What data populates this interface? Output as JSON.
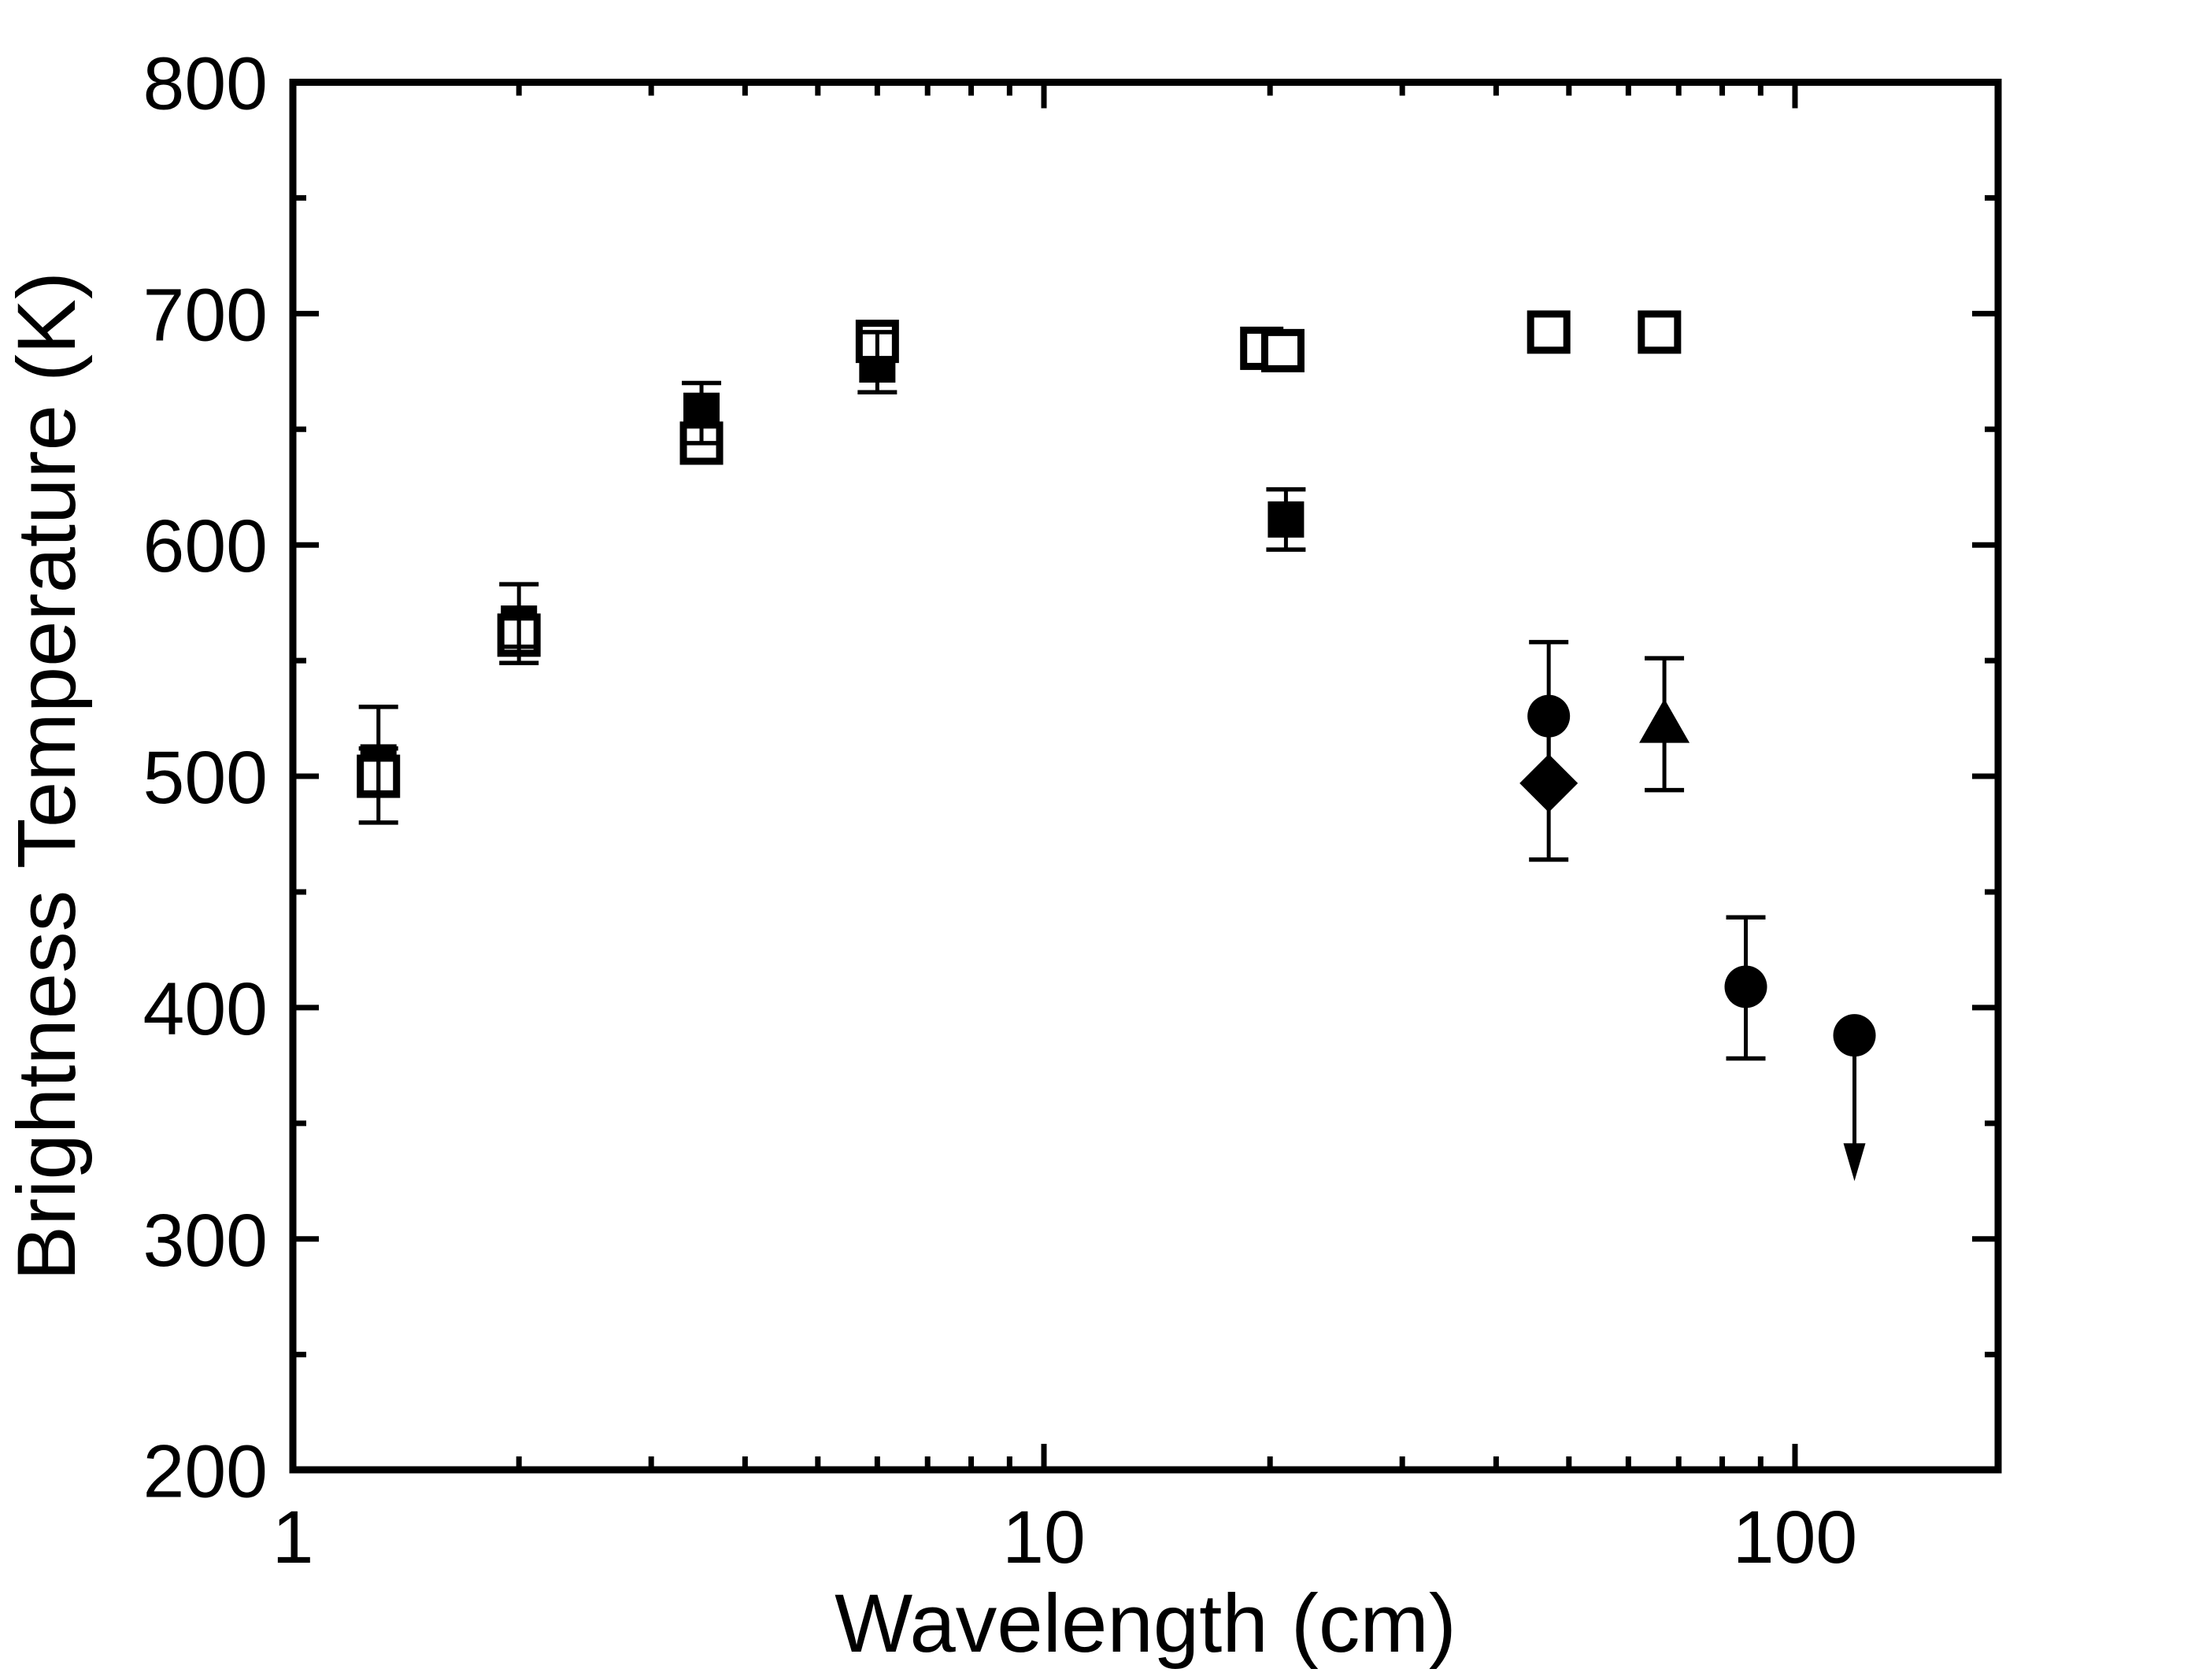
{
  "figure": {
    "background": "#ffffff",
    "ink": "#000000"
  },
  "chart_data": {
    "type": "scatter",
    "title": "",
    "xlabel": "Wavelength (cm)",
    "ylabel": "Brightness Temperature (K)",
    "x_scale": "log",
    "y_scale": "linear",
    "xlim": [
      1,
      186
    ],
    "ylim": [
      200,
      800
    ],
    "grid": false,
    "legend": "none",
    "x_major_ticks": [
      1,
      10,
      100
    ],
    "x_major_tick_labels": [
      "1",
      "10",
      "100"
    ],
    "x_minor_ticks": [
      2,
      3,
      4,
      5,
      6,
      7,
      8,
      9,
      20,
      30,
      40,
      50,
      60,
      70,
      80,
      90
    ],
    "y_major_ticks": [
      200,
      300,
      400,
      500,
      600,
      700,
      800
    ],
    "y_major_tick_labels": [
      "200",
      "300",
      "400",
      "500",
      "600",
      "700",
      "800"
    ],
    "y_minor_ticks": [
      250,
      350,
      450,
      550,
      650,
      750
    ],
    "series": [
      {
        "name": "open-squares",
        "marker": "open-square",
        "points": [
          {
            "x": 1.3,
            "y": 500,
            "err_up": 12,
            "err_down": 20
          },
          {
            "x": 2.0,
            "y": 561,
            "err_up": 8,
            "err_down": 12
          },
          {
            "x": 3.5,
            "y": 644,
            "err_up": 0,
            "err_down": 0
          },
          {
            "x": 6.0,
            "y": 688,
            "err_up": 0,
            "err_down": 0
          },
          {
            "x": 19.5,
            "y": 685,
            "err_up": 0,
            "err_down": 0
          },
          {
            "x": 20.8,
            "y": 684,
            "err_up": 0,
            "err_down": 0
          },
          {
            "x": 47,
            "y": 692,
            "err_up": 0,
            "err_down": 0
          },
          {
            "x": 66,
            "y": 692,
            "err_up": 0,
            "err_down": 0
          }
        ]
      },
      {
        "name": "filled-squares",
        "marker": "filled-square",
        "points": [
          {
            "x": 1.3,
            "y": 506,
            "err_up": 24,
            "err_down": 13
          },
          {
            "x": 2.0,
            "y": 566,
            "err_up": 17,
            "err_down": 10
          },
          {
            "x": 3.5,
            "y": 658,
            "err_up": 12,
            "err_down": 14
          },
          {
            "x": 6.0,
            "y": 678,
            "err_up": 14,
            "err_down": 12
          },
          {
            "x": 21,
            "y": 611,
            "err_up": 13,
            "err_down": 13
          }
        ]
      },
      {
        "name": "filled-circles",
        "marker": "filled-circle",
        "points": [
          {
            "x": 47,
            "y": 526,
            "err_up": 32,
            "err_down": 29
          },
          {
            "x": 86,
            "y": 409,
            "err_up": 30,
            "err_down": 31
          },
          {
            "x": 120,
            "y": 388,
            "err_up": 0,
            "err_down": 0,
            "upper_limit": true,
            "arrow_to": 325
          }
        ]
      },
      {
        "name": "filled-diamond",
        "marker": "filled-diamond",
        "points": [
          {
            "x": 47,
            "y": 497,
            "err_up": 29,
            "err_down": 33
          }
        ]
      },
      {
        "name": "filled-triangle",
        "marker": "filled-triangle",
        "points": [
          {
            "x": 67,
            "y": 523,
            "err_up": 28,
            "err_down": 29
          }
        ]
      }
    ]
  }
}
